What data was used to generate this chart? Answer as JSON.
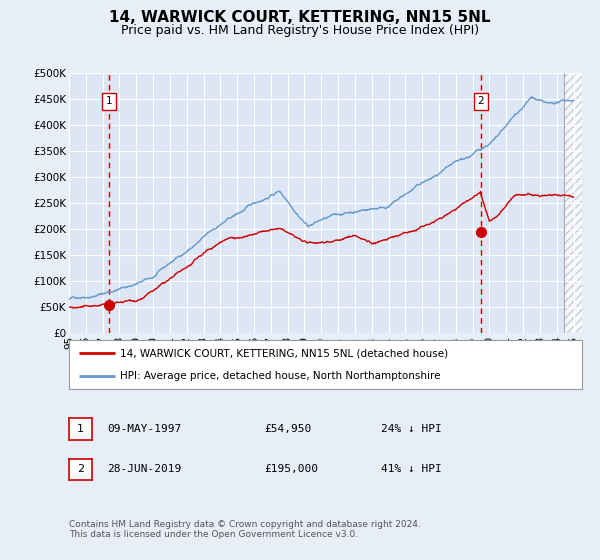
{
  "title": "14, WARWICK COURT, KETTERING, NN15 5NL",
  "subtitle": "Price paid vs. HM Land Registry's House Price Index (HPI)",
  "ylim": [
    0,
    500000
  ],
  "yticks": [
    0,
    50000,
    100000,
    150000,
    200000,
    250000,
    300000,
    350000,
    400000,
    450000,
    500000
  ],
  "ytick_labels": [
    "£0",
    "£50K",
    "£100K",
    "£150K",
    "£200K",
    "£250K",
    "£300K",
    "£350K",
    "£400K",
    "£450K",
    "£500K"
  ],
  "xlim_start": 1995.0,
  "xlim_end": 2025.5,
  "background_color": "#e8eef8",
  "plot_bg_color": "#dce6f5",
  "grid_color": "#ffffff",
  "hpi_color": "#6699cc",
  "price_color": "#cc0000",
  "point1_x": 1997.36,
  "point1_y": 54950,
  "point2_x": 2019.49,
  "point2_y": 195000,
  "legend_line1": "14, WARWICK COURT, KETTERING, NN15 5NL (detached house)",
  "legend_line2": "HPI: Average price, detached house, North Northamptonshire",
  "table_row1": [
    "1",
    "09-MAY-1997",
    "£54,950",
    "24% ↓ HPI"
  ],
  "table_row2": [
    "2",
    "28-JUN-2019",
    "£195,000",
    "41% ↓ HPI"
  ],
  "footnote": "Contains HM Land Registry data © Crown copyright and database right 2024.\nThis data is licensed under the Open Government Licence v3.0.",
  "title_fontsize": 11,
  "subtitle_fontsize": 9,
  "tick_fontsize": 7.5,
  "hatch_color": "#bbbbbb",
  "hatch_start": 2024.42
}
